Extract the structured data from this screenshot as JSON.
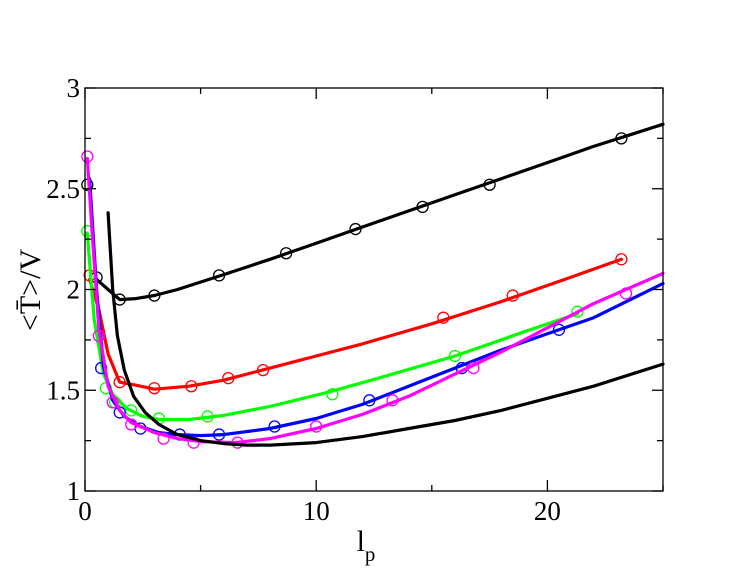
{
  "chart_data": {
    "type": "line",
    "title": "",
    "xlabel": "l",
    "xlabel_subscript": "p",
    "ylabel": "<T̄>/V",
    "xlim": [
      0,
      25
    ],
    "ylim": [
      1,
      3
    ],
    "x_ticks": [
      "0",
      "10",
      "20"
    ],
    "y_ticks": [
      "1",
      "1.5",
      "2",
      "2.5",
      "3"
    ],
    "grid": false,
    "legend": "none",
    "series": [
      {
        "color": "#000000",
        "line": {
          "x": [
            0.5,
            1.1,
            1.5,
            2.2,
            3,
            4,
            5.9,
            8,
            10,
            12,
            14,
            16,
            18,
            20,
            22,
            25
          ],
          "y": [
            2.05,
            1.99,
            1.95,
            1.955,
            1.97,
            2.0,
            2.07,
            2.15,
            2.23,
            2.31,
            2.39,
            2.47,
            2.55,
            2.63,
            2.71,
            2.82
          ]
        },
        "markers": {
          "x": [
            0.1,
            0.5,
            1.5,
            3.0,
            5.8,
            8.7,
            11.7,
            14.6,
            17.5,
            23.2
          ],
          "y": [
            2.52,
            2.06,
            1.95,
            1.97,
            2.07,
            2.18,
            2.3,
            2.41,
            2.52,
            2.75
          ]
        }
      },
      {
        "color": "#ff0000",
        "line": {
          "x": [
            0.2,
            0.6,
            1.0,
            1.5,
            2.2,
            3.0,
            4.5,
            6.0,
            8,
            10,
            12,
            15,
            18,
            21,
            23.2
          ],
          "y": [
            2.05,
            1.9,
            1.68,
            1.54,
            1.525,
            1.505,
            1.52,
            1.55,
            1.61,
            1.67,
            1.73,
            1.83,
            1.94,
            2.06,
            2.15
          ]
        },
        "markers": {
          "x": [
            0.2,
            1.5,
            3.0,
            4.6,
            6.2,
            7.7,
            15.5,
            18.5,
            23.2
          ],
          "y": [
            2.07,
            1.54,
            1.51,
            1.52,
            1.56,
            1.6,
            1.86,
            1.97,
            2.15
          ]
        }
      },
      {
        "color": "#00ff00",
        "line": {
          "x": [
            0.1,
            0.4,
            0.8,
            1.2,
            1.8,
            2.5,
            3.2,
            4.5,
            6,
            8,
            10.5,
            13,
            16,
            19,
            21.3
          ],
          "y": [
            2.28,
            1.85,
            1.58,
            1.48,
            1.41,
            1.37,
            1.355,
            1.355,
            1.375,
            1.42,
            1.49,
            1.57,
            1.67,
            1.79,
            1.88
          ]
        },
        "markers": {
          "x": [
            0.1,
            0.9,
            1.3,
            2.0,
            3.2,
            5.3,
            10.7,
            16.0,
            21.3
          ],
          "y": [
            2.29,
            1.51,
            1.44,
            1.4,
            1.36,
            1.37,
            1.48,
            1.67,
            1.89
          ]
        }
      },
      {
        "color": "#0000ff",
        "line": {
          "x": [
            0.2,
            0.5,
            0.8,
            1.2,
            1.7,
            2.4,
            3.2,
            4.0,
            5.0,
            6.0,
            8,
            10,
            12,
            14,
            16,
            18,
            20,
            22,
            25
          ],
          "y": [
            2.55,
            2.0,
            1.62,
            1.45,
            1.37,
            1.32,
            1.29,
            1.28,
            1.275,
            1.28,
            1.31,
            1.36,
            1.43,
            1.52,
            1.61,
            1.7,
            1.78,
            1.86,
            2.03
          ]
        },
        "markers": {
          "x": [
            0.7,
            1.5,
            2.4,
            4.1,
            5.8,
            8.2,
            12.3,
            16.3,
            20.5
          ],
          "y": [
            1.61,
            1.39,
            1.31,
            1.28,
            1.28,
            1.32,
            1.45,
            1.61,
            1.8
          ]
        }
      },
      {
        "color": "#ff00ff",
        "line": {
          "x": [
            0.1,
            0.3,
            0.6,
            1.0,
            1.5,
            2.0,
            3.0,
            4.0,
            5.0,
            6.5,
            8,
            10,
            12,
            14,
            16,
            18,
            20,
            22,
            25
          ],
          "y": [
            2.65,
            2.3,
            1.8,
            1.52,
            1.4,
            1.34,
            1.29,
            1.26,
            1.245,
            1.24,
            1.26,
            1.31,
            1.38,
            1.47,
            1.58,
            1.69,
            1.81,
            1.93,
            2.08
          ]
        },
        "markers": {
          "x": [
            0.1,
            0.6,
            1.2,
            2.0,
            3.4,
            4.7,
            6.6,
            10.0,
            13.3,
            16.8,
            23.4
          ],
          "y": [
            2.66,
            1.77,
            1.44,
            1.33,
            1.26,
            1.24,
            1.24,
            1.32,
            1.45,
            1.61,
            1.98
          ]
        }
      },
      {
        "color": "#000000",
        "line": {
          "x": [
            1.0,
            1.2,
            1.4,
            1.7,
            2.1,
            2.6,
            3.2,
            4.0,
            5.0,
            6.0,
            7.0,
            8.0,
            10,
            12,
            14,
            16,
            18,
            20,
            22,
            25
          ],
          "y": [
            2.38,
            2.0,
            1.77,
            1.6,
            1.47,
            1.39,
            1.33,
            1.28,
            1.25,
            1.235,
            1.228,
            1.228,
            1.24,
            1.27,
            1.31,
            1.35,
            1.4,
            1.46,
            1.52,
            1.63
          ]
        },
        "markers": {
          "x": [],
          "y": []
        }
      }
    ]
  }
}
